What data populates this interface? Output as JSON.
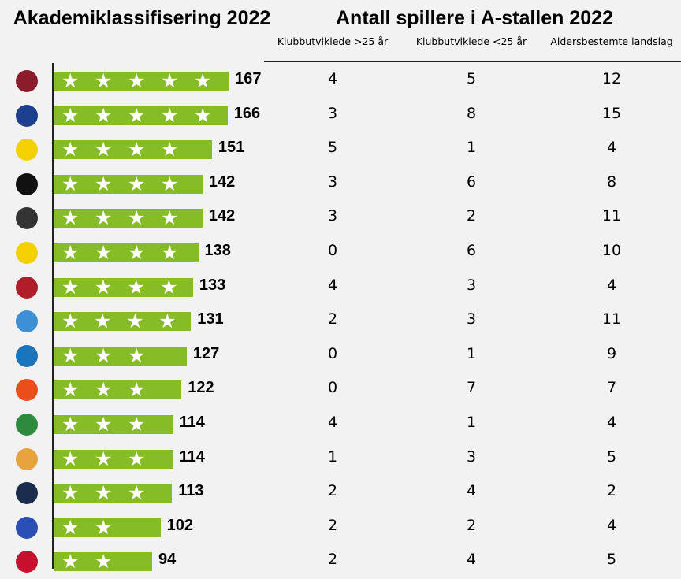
{
  "titles": {
    "left": "Akademiklassifisering 2022",
    "right": "Antall spillere i A-stallen 2022"
  },
  "columns": [
    "Klubbutviklede >25 år",
    "Klubbutviklede <25 år",
    "Aldersbestemte landslag"
  ],
  "colors": {
    "bar": "#86bc25",
    "star": "#ffffff",
    "background": "#f2f2f2"
  },
  "chart_data": {
    "type": "bar",
    "orientation": "horizontal",
    "title": "Akademiklassifisering 2022",
    "values": [
      167,
      166,
      151,
      142,
      142,
      138,
      133,
      131,
      127,
      122,
      114,
      114,
      113,
      102,
      94
    ],
    "stars": [
      5,
      5,
      4,
      4,
      4,
      4,
      4,
      4,
      3,
      3,
      3,
      3,
      3,
      2,
      2
    ],
    "logos": [
      {
        "icon": "viking-fk-logo-icon",
        "color": "#8b1c2b"
      },
      {
        "icon": "valerenga-logo-icon",
        "color": "#1d3f8f"
      },
      {
        "icon": "bodo-glimt-logo-icon",
        "color": "#f5d000"
      },
      {
        "icon": "odd-logo-icon",
        "color": "#111111"
      },
      {
        "icon": "rosenborg-logo-icon",
        "color": "#333333"
      },
      {
        "icon": "lillestrom-logo-icon",
        "color": "#f5d000"
      },
      {
        "icon": "tromso-logo-icon",
        "color": "#b01e2a"
      },
      {
        "icon": "molde-logo-icon",
        "color": "#3d8fd6"
      },
      {
        "icon": "fk-haugesund-logo-icon",
        "color": "#1b75bc"
      },
      {
        "icon": "stromsgodset-logo-icon",
        "color": "#e94e1b"
      },
      {
        "icon": "hamkam-logo-icon",
        "color": "#2e8b3e"
      },
      {
        "icon": "aalesund-logo-icon",
        "color": "#e8a33d"
      },
      {
        "icon": "kristiansund-logo-icon",
        "color": "#1a2b4c"
      },
      {
        "icon": "sarpsborg-logo-icon",
        "color": "#2a4fb5"
      },
      {
        "icon": "sandefjord-logo-icon",
        "color": "#c8102e"
      }
    ],
    "table": [
      [
        4,
        5,
        12
      ],
      [
        3,
        8,
        15
      ],
      [
        5,
        1,
        4
      ],
      [
        3,
        6,
        8
      ],
      [
        3,
        2,
        11
      ],
      [
        0,
        6,
        10
      ],
      [
        4,
        3,
        4
      ],
      [
        2,
        3,
        11
      ],
      [
        0,
        1,
        9
      ],
      [
        0,
        7,
        7
      ],
      [
        4,
        1,
        4
      ],
      [
        1,
        3,
        5
      ],
      [
        2,
        4,
        2
      ],
      [
        2,
        2,
        4
      ],
      [
        2,
        4,
        5
      ]
    ]
  }
}
